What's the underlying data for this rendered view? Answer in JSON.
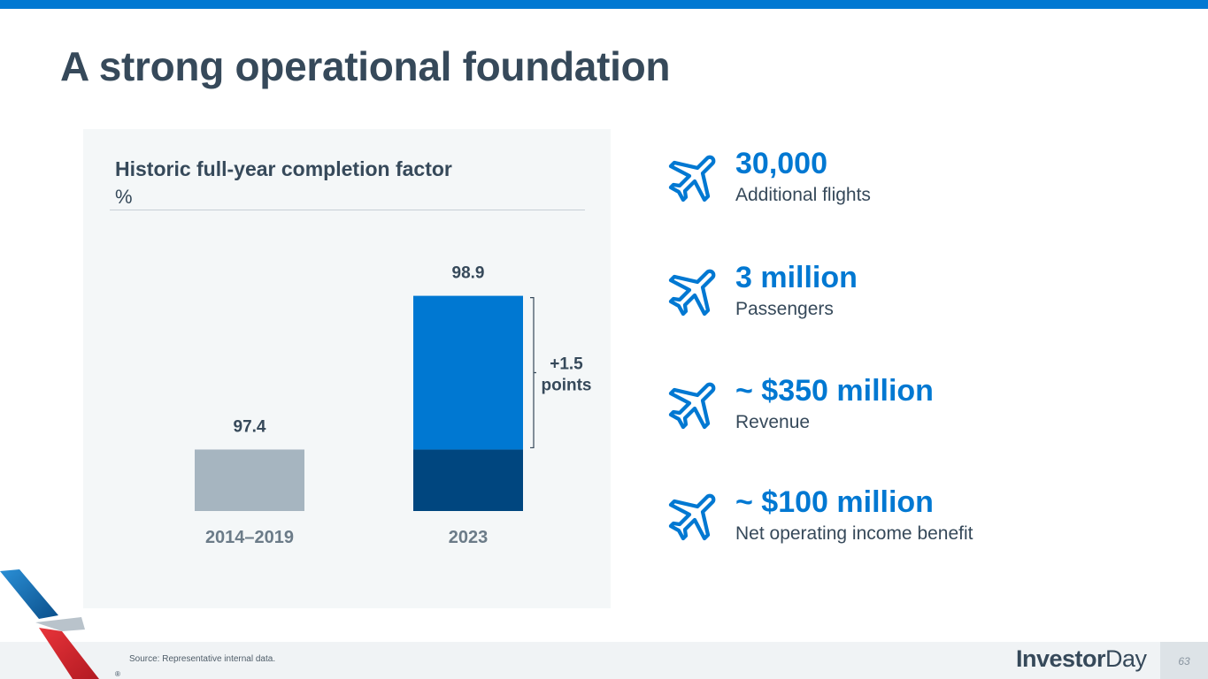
{
  "slide": {
    "title": "A strong operational foundation",
    "page_number": "63",
    "source": "Source: Representative internal data.",
    "brand_part1": "Investor",
    "brand_part2": "Day",
    "registered": "®"
  },
  "chart_data": {
    "type": "bar",
    "title": "Historic full-year completion factor",
    "ylabel": "%",
    "categories": [
      "2014–2019",
      "2023"
    ],
    "values": [
      97.4,
      98.9
    ],
    "data_labels": [
      "97.4",
      "98.9"
    ],
    "baseline_value": 97.4,
    "ylim": [
      96.8,
      99.0
    ],
    "annotation": {
      "line1": "+1.5",
      "line2": "points",
      "delta": 1.5
    },
    "grid": false
  },
  "stats": [
    {
      "icon": "airplane-icon",
      "value": "30,000",
      "label": "Additional flights"
    },
    {
      "icon": "airplane-icon",
      "value": "3 million",
      "label": "Passengers"
    },
    {
      "icon": "airplane-icon",
      "value": "~ $350 million",
      "label": "Revenue"
    },
    {
      "icon": "airplane-icon",
      "value": "~ $100 million",
      "label": "Net operating income benefit"
    }
  ],
  "colors": {
    "accent": "#0078d2",
    "title": "#36495a",
    "bar_historic": "#a6b5c0",
    "bar_2023_base": "#00467f",
    "bar_2023_gain": "#0078d2"
  }
}
